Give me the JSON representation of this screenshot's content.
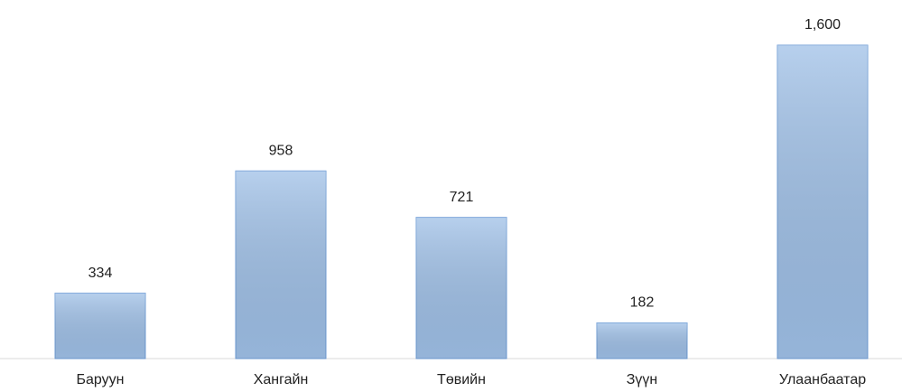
{
  "chart_data": {
    "type": "bar",
    "categories": [
      "Баруун",
      "Хангайн",
      "Төвийн",
      "Зүүн",
      "Улаанбаатар"
    ],
    "values": [
      334,
      958,
      721,
      182,
      1600
    ],
    "value_labels": [
      "334",
      "958",
      "721",
      "182",
      "1,600"
    ],
    "color": "#9fc0e7"
  }
}
